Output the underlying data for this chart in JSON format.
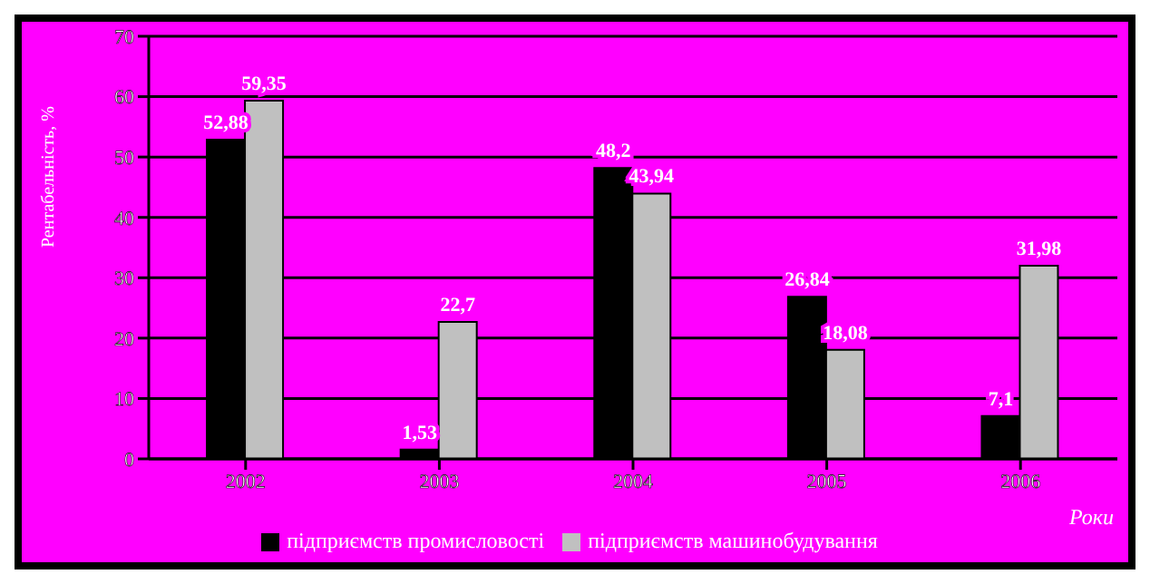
{
  "chart_data": {
    "type": "bar",
    "categories": [
      "2002",
      "2003",
      "2004",
      "2005",
      "2006"
    ],
    "ylabel": "Рентабельність, %",
    "xlabel": "Роки",
    "series": [
      {
        "name": "підприємств промисловості",
        "color": "#000000",
        "values": [
          52.88,
          1.53,
          48.2,
          26.84,
          7.1
        ],
        "value_labels": [
          "52,88",
          "1,53",
          "48,2",
          "26,84",
          "7,1"
        ]
      },
      {
        "name": "підприємств машинобудування",
        "color": "#c0c0c0",
        "values": [
          59.35,
          22.7,
          43.94,
          18.08,
          31.98
        ],
        "value_labels": [
          "59,35",
          "22,7",
          "43,94",
          "18,08",
          "31,98"
        ]
      }
    ],
    "ylim": [
      0,
      70
    ],
    "yticks": [
      0,
      10,
      20,
      30,
      40,
      50,
      60,
      70
    ],
    "grid": "y",
    "legend": "bottom"
  }
}
